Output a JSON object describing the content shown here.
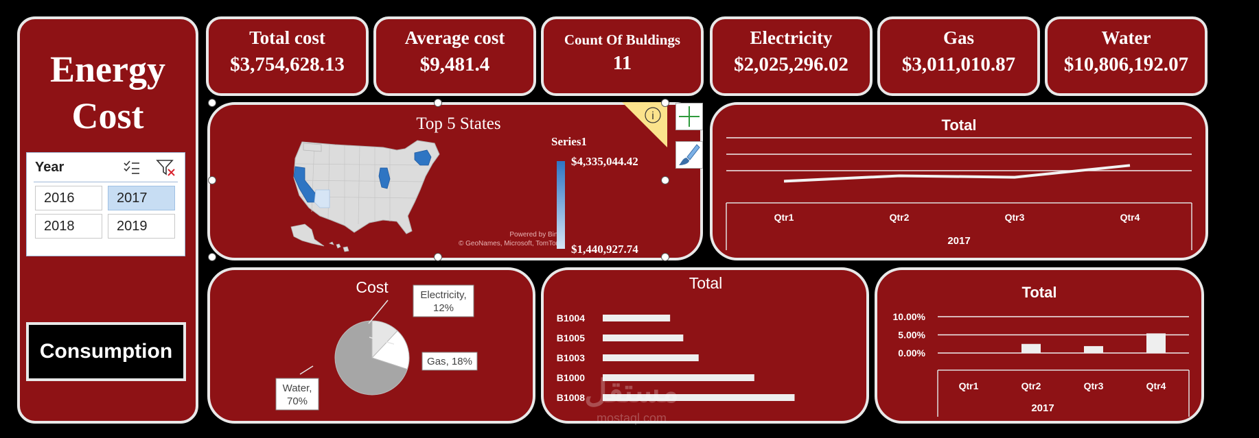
{
  "dashboard": {
    "title_line1": "Energy",
    "title_line2": "Cost",
    "consumption_button": "Consumption"
  },
  "slicer": {
    "header": "Year",
    "years": [
      "2016",
      "2017",
      "2018",
      "2019"
    ],
    "selected": "2017"
  },
  "kpis": [
    {
      "label": "Total cost",
      "value": "$3,754,628.13"
    },
    {
      "label": "Average cost",
      "value": "$9,481.4"
    },
    {
      "label": "Count Of Buldings",
      "value": "11"
    },
    {
      "label": "Electricity",
      "value": "$2,025,296.02"
    },
    {
      "label": "Gas",
      "value": "$3,011,010.87"
    },
    {
      "label": "Water",
      "value": "$10,806,192.07"
    }
  ],
  "map": {
    "title": "Top 5 States",
    "legend_title": "Series1",
    "legend_max": "$4,335,044.42",
    "legend_min": "$1,440,927.74",
    "credit_line1": "Powered by Bing",
    "credit_line2": "© GeoNames, Microsoft, TomTom",
    "info_glyph": "i"
  },
  "colors": {
    "card_bg": "#8e1215",
    "card_border": "#e8e8e8",
    "map_high": "#2e75c3",
    "map_low": "#d6e5f5",
    "pie_water": "#a6a6a6",
    "pie_gas": "#ffffff",
    "pie_electricity": "#e6e6e6",
    "bar_fill": "#eeeeee"
  },
  "chart_data": [
    {
      "id": "line",
      "type": "line",
      "title": "Total",
      "categories": [
        "Qtr1",
        "Qtr2",
        "Qtr3",
        "Qtr4"
      ],
      "group_label": "2017",
      "values": [
        0.6,
        1.15,
        1.0,
        2.2
      ],
      "ylim": [
        0,
        5
      ],
      "grid": true
    },
    {
      "id": "pie",
      "type": "pie",
      "title": "Cost",
      "slices": [
        {
          "label": "Electricity",
          "value": 12,
          "display": "12%"
        },
        {
          "label": "Gas",
          "value": 18,
          "display": "18%"
        },
        {
          "label": "Water",
          "value": 70,
          "display": "70%"
        }
      ]
    },
    {
      "id": "hbar",
      "type": "bar",
      "orientation": "horizontal",
      "title": "Total",
      "categories": [
        "B1004",
        "B1005",
        "B1003",
        "B1000",
        "B1008"
      ],
      "values": [
        92,
        110,
        131,
        207,
        262
      ],
      "xlim": [
        0,
        300
      ]
    },
    {
      "id": "col",
      "type": "bar",
      "title": "Total",
      "categories": [
        "Qtr1",
        "Qtr2",
        "Qtr3",
        "Qtr4"
      ],
      "group_label": "2017",
      "values": [
        0,
        2.5,
        1.9,
        5.4
      ],
      "ylim": [
        0,
        10
      ],
      "tick_labels": [
        "10.00%",
        "5.00%",
        "0.00%"
      ]
    }
  ]
}
